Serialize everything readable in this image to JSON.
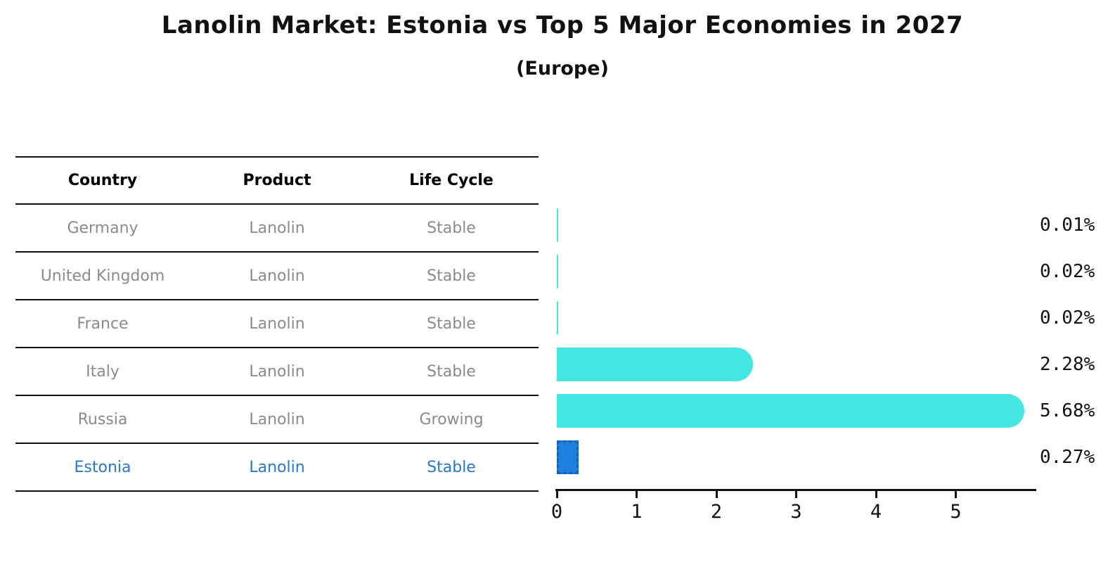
{
  "title": "Lanolin Market: Estonia vs Top 5 Major Economies in 2027",
  "subtitle": "(Europe)",
  "colors": {
    "bar_default": "#45E6E1",
    "bar_highlight_fill": "#2080E0",
    "bar_highlight_border": "#1565C0",
    "highlight_text": "#2878CE",
    "table_text": "#8A8A8A",
    "line_color": "#111111"
  },
  "table": {
    "headers": [
      "Country",
      "Product",
      "Life Cycle"
    ],
    "rows": [
      {
        "country": "Germany",
        "product": "Lanolin",
        "life_cycle": "Stable",
        "highlight": false
      },
      {
        "country": "United Kingdom",
        "product": "Lanolin",
        "life_cycle": "Stable",
        "highlight": false
      },
      {
        "country": "France",
        "product": "Lanolin",
        "life_cycle": "Stable",
        "highlight": false
      },
      {
        "country": "Italy",
        "product": "Lanolin",
        "life_cycle": "Stable",
        "highlight": false
      },
      {
        "country": "Russia",
        "product": "Lanolin",
        "life_cycle": "Growing",
        "highlight": false
      },
      {
        "country": "Estonia",
        "product": "Lanolin",
        "life_cycle": "Stable",
        "highlight": true
      }
    ]
  },
  "chart_data": {
    "type": "bar",
    "orientation": "horizontal",
    "title": "Lanolin Market: Estonia vs Top 5 Major Economies in 2027 (Europe)",
    "categories": [
      "Germany",
      "United Kingdom",
      "France",
      "Italy",
      "Russia",
      "Estonia"
    ],
    "values": [
      0.01,
      0.02,
      0.02,
      2.28,
      5.68,
      0.27
    ],
    "value_labels": [
      "0.01%",
      "0.02%",
      "0.02%",
      "2.28%",
      "5.68%",
      "0.27%"
    ],
    "highlight_index": 5,
    "xlabel": "",
    "ylabel": "",
    "xlim": [
      0,
      6
    ],
    "x_ticks": [
      0,
      1,
      2,
      3,
      4,
      5
    ],
    "x_tick_labels": [
      "0",
      "1",
      "2",
      "3",
      "4",
      "5"
    ],
    "grid": false,
    "legend": false
  }
}
